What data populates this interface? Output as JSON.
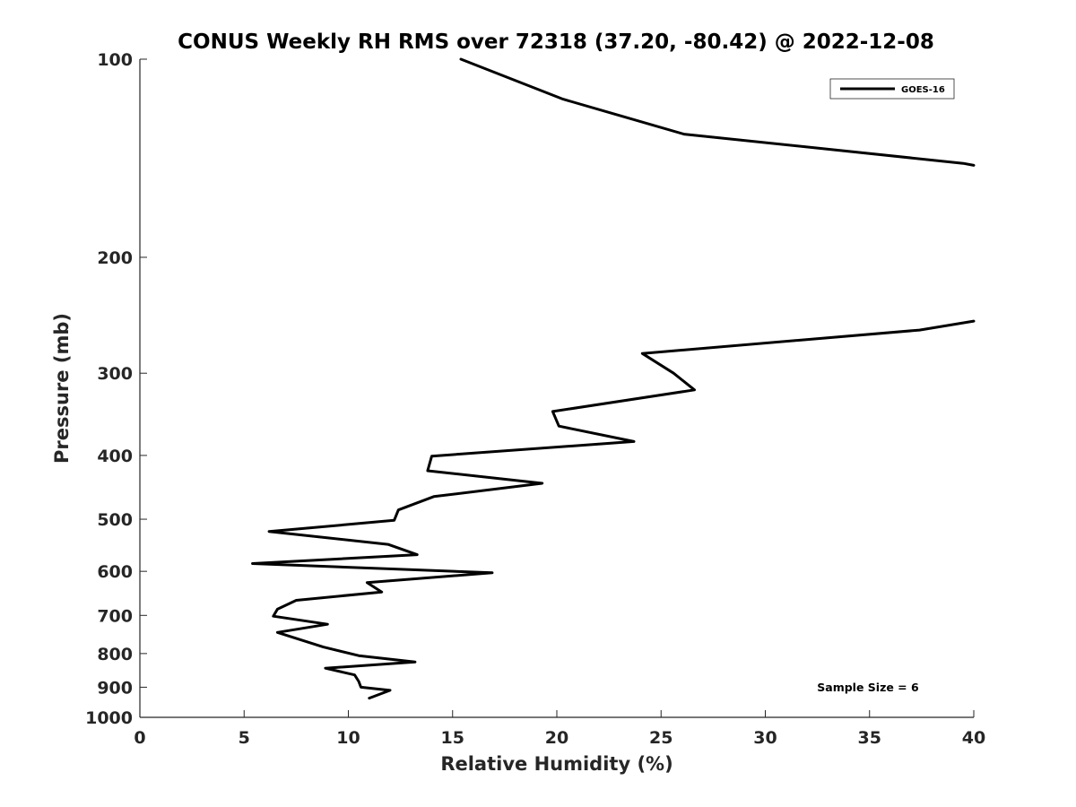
{
  "chart_data": {
    "type": "line",
    "title": "CONUS Weekly RH RMS over 72318 (37.20, -80.42) @ 2022-12-08",
    "xlabel": "Relative Humidity (%)",
    "ylabel": "Pressure (mb)",
    "xlim": [
      0,
      40
    ],
    "ylim": [
      100,
      1000
    ],
    "y_scale": "log",
    "y_direction": "reversed",
    "x_ticks": [
      "0",
      "5",
      "10",
      "15",
      "20",
      "25",
      "30",
      "35",
      "40"
    ],
    "y_ticks": [
      "100",
      "200",
      "300",
      "400",
      "500",
      "600",
      "700",
      "800",
      "900",
      "1000"
    ],
    "grid": false,
    "legend_position": "top-right",
    "annotation": "Sample Size = 6",
    "line_color": "#000000",
    "series": [
      {
        "name": "GOES-16",
        "segments": [
          [
            {
              "x": 15.4,
              "y": 100
            },
            {
              "x": 20.3,
              "y": 115
            },
            {
              "x": 26.1,
              "y": 130
            },
            {
              "x": 39.5,
              "y": 144
            },
            {
              "x": 40.0,
              "y": 145
            }
          ],
          [
            {
              "x": 40.0,
              "y": 250
            },
            {
              "x": 37.4,
              "y": 258
            },
            {
              "x": 24.1,
              "y": 280
            },
            {
              "x": 25.6,
              "y": 300
            },
            {
              "x": 26.6,
              "y": 318
            },
            {
              "x": 19.8,
              "y": 343
            },
            {
              "x": 20.1,
              "y": 361
            },
            {
              "x": 23.7,
              "y": 381
            },
            {
              "x": 14.0,
              "y": 401
            },
            {
              "x": 13.8,
              "y": 422
            },
            {
              "x": 19.3,
              "y": 441
            },
            {
              "x": 14.1,
              "y": 462
            },
            {
              "x": 12.4,
              "y": 484
            },
            {
              "x": 12.2,
              "y": 502
            },
            {
              "x": 6.2,
              "y": 522
            },
            {
              "x": 11.9,
              "y": 546
            },
            {
              "x": 13.3,
              "y": 566
            },
            {
              "x": 5.4,
              "y": 584
            },
            {
              "x": 16.9,
              "y": 603
            },
            {
              "x": 10.9,
              "y": 624
            },
            {
              "x": 11.6,
              "y": 645
            },
            {
              "x": 7.5,
              "y": 664
            },
            {
              "x": 6.6,
              "y": 685
            },
            {
              "x": 6.4,
              "y": 702
            },
            {
              "x": 9.0,
              "y": 722
            },
            {
              "x": 6.6,
              "y": 743
            },
            {
              "x": 8.8,
              "y": 782
            },
            {
              "x": 10.5,
              "y": 806
            },
            {
              "x": 13.2,
              "y": 824
            },
            {
              "x": 8.9,
              "y": 842
            },
            {
              "x": 10.3,
              "y": 862
            },
            {
              "x": 10.5,
              "y": 882
            },
            {
              "x": 10.6,
              "y": 900
            },
            {
              "x": 12.0,
              "y": 910
            },
            {
              "x": 11.0,
              "y": 935
            }
          ]
        ]
      }
    ]
  }
}
